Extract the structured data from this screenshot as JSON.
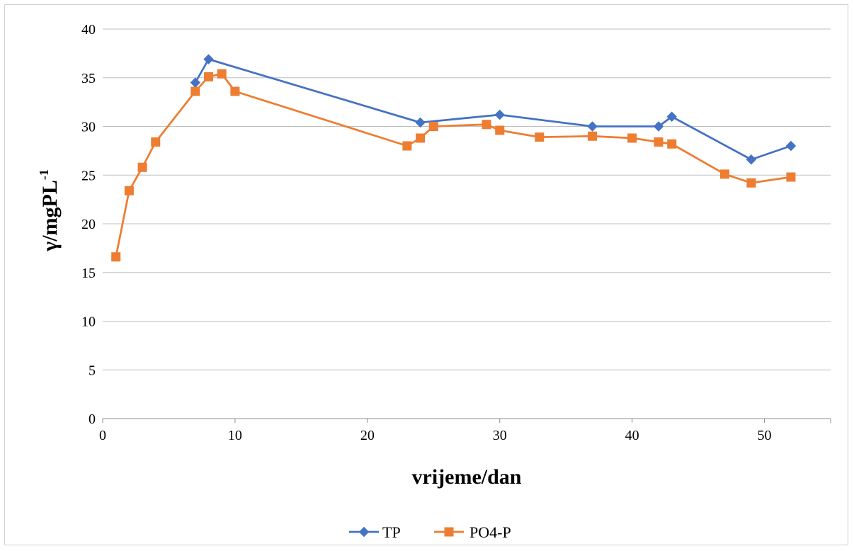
{
  "chart_data": {
    "type": "line",
    "title": "",
    "xlabel": "vrijeme/dan",
    "ylabel_main": "γ/mgPL",
    "ylabel_sup": "-1",
    "xlim": [
      0,
      55
    ],
    "ylim": [
      0,
      40
    ],
    "xticks": [
      0,
      10,
      20,
      30,
      40,
      50
    ],
    "yticks": [
      0,
      5,
      10,
      15,
      20,
      25,
      30,
      35,
      40
    ],
    "grid": "horizontal",
    "legend_position": "bottom",
    "series": [
      {
        "name": "TP",
        "color": "#4472C4",
        "marker": "diamond",
        "points": [
          [
            7,
            34.5
          ],
          [
            8,
            36.9
          ],
          [
            24,
            30.4
          ],
          [
            30,
            31.2
          ],
          [
            37,
            30.0
          ],
          [
            42,
            30.0
          ],
          [
            43,
            31.0
          ],
          [
            49,
            26.6
          ],
          [
            52,
            28.0
          ]
        ]
      },
      {
        "name": "PO4-P",
        "color": "#ED7D31",
        "marker": "square",
        "points": [
          [
            1,
            16.6
          ],
          [
            2,
            23.4
          ],
          [
            3,
            25.8
          ],
          [
            4,
            28.4
          ],
          [
            7,
            33.6
          ],
          [
            8,
            35.1
          ],
          [
            9,
            35.4
          ],
          [
            10,
            33.6
          ],
          [
            23,
            28.0
          ],
          [
            24,
            28.8
          ],
          [
            25,
            30.0
          ],
          [
            29,
            30.2
          ],
          [
            30,
            29.6
          ],
          [
            33,
            28.9
          ],
          [
            37,
            29.0
          ],
          [
            40,
            28.8
          ],
          [
            42,
            28.4
          ],
          [
            43,
            28.2
          ],
          [
            47,
            25.1
          ],
          [
            49,
            24.2
          ],
          [
            52,
            24.8
          ]
        ]
      }
    ]
  }
}
